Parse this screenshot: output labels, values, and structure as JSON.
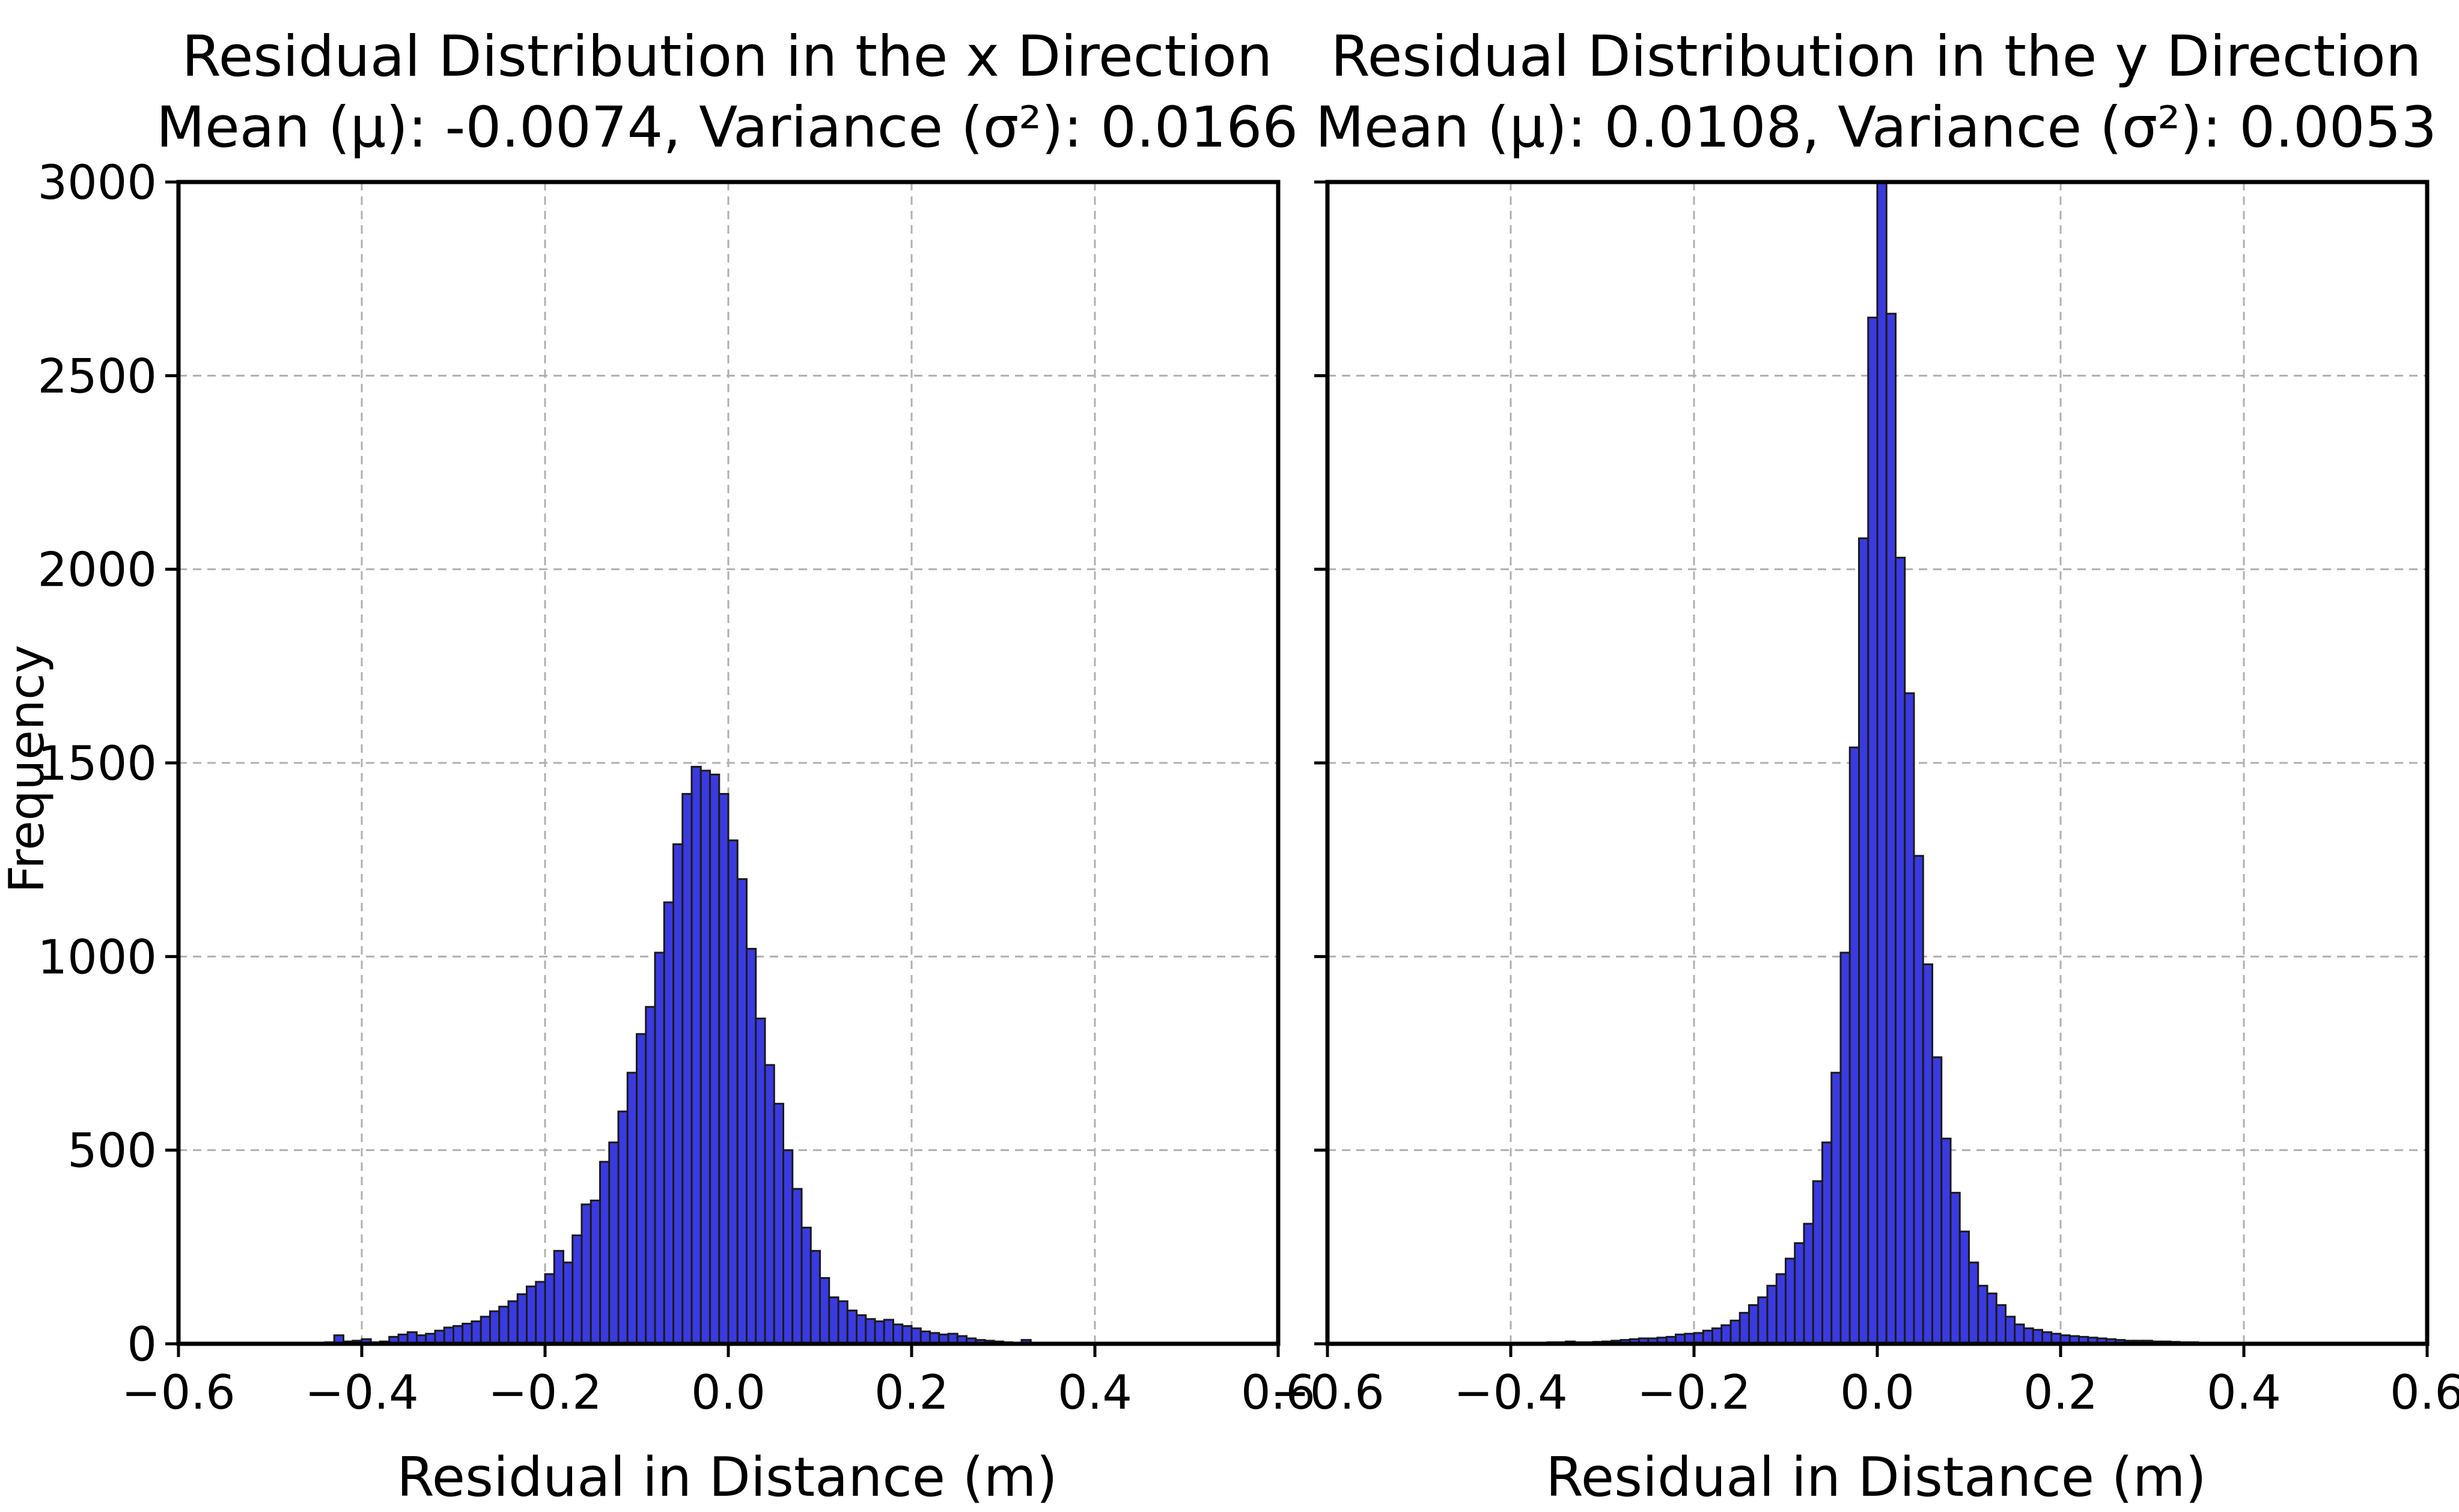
{
  "chart_data": [
    {
      "type": "bar",
      "id": "x",
      "title_line1": "Residual Distribution in the x Direction",
      "title_line2": "Mean (μ): -0.0074, Variance (σ²): 0.0166",
      "xlabel": "Residual in Distance (m)",
      "ylabel": "Frequency",
      "xlim": [
        -0.6,
        0.6
      ],
      "ylim": [
        0,
        3000
      ],
      "xticks": [
        -0.6,
        -0.4,
        -0.2,
        0.0,
        0.2,
        0.4,
        0.6
      ],
      "xtick_labels": [
        "−0.6",
        "−0.4",
        "−0.2",
        "0.0",
        "0.2",
        "0.4",
        "0.6"
      ],
      "yticks": [
        0,
        500,
        1000,
        1500,
        2000,
        2500,
        3000
      ],
      "ytick_labels": [
        "0",
        "500",
        "1000",
        "1500",
        "2000",
        "2500",
        "3000"
      ],
      "grid": true,
      "bar_color": "#3a3ae0",
      "bin_width": 0.01,
      "bin_starts": [
        -0.6,
        -0.59,
        -0.58,
        -0.57,
        -0.56,
        -0.55,
        -0.54,
        -0.53,
        -0.52,
        -0.51,
        -0.5,
        -0.49,
        -0.48,
        -0.47,
        -0.46,
        -0.45,
        -0.44,
        -0.43,
        -0.42,
        -0.41,
        -0.4,
        -0.39,
        -0.38,
        -0.37,
        -0.36,
        -0.35,
        -0.34,
        -0.33,
        -0.32,
        -0.31,
        -0.3,
        -0.29,
        -0.28,
        -0.27,
        -0.26,
        -0.25,
        -0.24,
        -0.23,
        -0.22,
        -0.21,
        -0.2,
        -0.19,
        -0.18,
        -0.17,
        -0.16,
        -0.15,
        -0.14,
        -0.13,
        -0.12,
        -0.11,
        -0.1,
        -0.09,
        -0.08,
        -0.07,
        -0.06,
        -0.05,
        -0.04,
        -0.03,
        -0.02,
        -0.01,
        0.0,
        0.01,
        0.02,
        0.03,
        0.04,
        0.05,
        0.06,
        0.07,
        0.08,
        0.09,
        0.1,
        0.11,
        0.12,
        0.13,
        0.14,
        0.15,
        0.16,
        0.17,
        0.18,
        0.19,
        0.2,
        0.21,
        0.22,
        0.23,
        0.24,
        0.25,
        0.26,
        0.27,
        0.28,
        0.29,
        0.3,
        0.31,
        0.32,
        0.33,
        0.34,
        0.35,
        0.36,
        0.37,
        0.38,
        0.39,
        0.4,
        0.41,
        0.42,
        0.43,
        0.44,
        0.45,
        0.46,
        0.47,
        0.48,
        0.49,
        0.5,
        0.51,
        0.52,
        0.53,
        0.54,
        0.55,
        0.56,
        0.57,
        0.58,
        0.59
      ],
      "values": [
        0,
        0,
        1,
        2,
        2,
        3,
        2,
        1,
        2,
        3,
        2,
        2,
        3,
        2,
        3,
        2,
        4,
        22,
        6,
        8,
        12,
        4,
        6,
        18,
        24,
        30,
        22,
        26,
        34,
        42,
        46,
        52,
        58,
        70,
        84,
        96,
        110,
        128,
        148,
        160,
        180,
        240,
        210,
        280,
        360,
        370,
        470,
        520,
        600,
        700,
        800,
        870,
        1010,
        1140,
        1290,
        1420,
        1490,
        1480,
        1470,
        1420,
        1300,
        1200,
        1020,
        840,
        720,
        620,
        500,
        400,
        300,
        240,
        170,
        120,
        110,
        86,
        74,
        64,
        58,
        62,
        50,
        46,
        40,
        32,
        28,
        24,
        26,
        20,
        14,
        10,
        8,
        6,
        4,
        2,
        10,
        3,
        2,
        2,
        1,
        2,
        1,
        1,
        2,
        1,
        2,
        1,
        1,
        1,
        0,
        1,
        1,
        0,
        1,
        0,
        1,
        0,
        0,
        1,
        0,
        0,
        0,
        0
      ]
    },
    {
      "type": "bar",
      "id": "y",
      "title_line1": "Residual Distribution in the y Direction",
      "title_line2": "Mean (μ): 0.0108, Variance (σ²): 0.0053",
      "xlabel": "Residual in Distance (m)",
      "xlim": [
        -0.6,
        0.6
      ],
      "ylim": [
        0,
        3000
      ],
      "xticks": [
        -0.6,
        -0.4,
        -0.2,
        0.0,
        0.2,
        0.4,
        0.6
      ],
      "xtick_labels": [
        "−0.6",
        "−0.4",
        "−0.2",
        "0.0",
        "0.2",
        "0.4",
        "0.6"
      ],
      "yticks": [
        0,
        500,
        1000,
        1500,
        2000,
        2500,
        3000
      ],
      "grid": true,
      "bar_color": "#3a3ae0",
      "bin_width": 0.01,
      "bin_starts": [
        -0.6,
        -0.59,
        -0.58,
        -0.57,
        -0.56,
        -0.55,
        -0.54,
        -0.53,
        -0.52,
        -0.51,
        -0.5,
        -0.49,
        -0.48,
        -0.47,
        -0.46,
        -0.45,
        -0.44,
        -0.43,
        -0.42,
        -0.41,
        -0.4,
        -0.39,
        -0.38,
        -0.37,
        -0.36,
        -0.35,
        -0.34,
        -0.33,
        -0.32,
        -0.31,
        -0.3,
        -0.29,
        -0.28,
        -0.27,
        -0.26,
        -0.25,
        -0.24,
        -0.23,
        -0.22,
        -0.21,
        -0.2,
        -0.19,
        -0.18,
        -0.17,
        -0.16,
        -0.15,
        -0.14,
        -0.13,
        -0.12,
        -0.11,
        -0.1,
        -0.09,
        -0.08,
        -0.07,
        -0.06,
        -0.05,
        -0.04,
        -0.03,
        -0.02,
        -0.01,
        0.0,
        0.01,
        0.02,
        0.03,
        0.04,
        0.05,
        0.06,
        0.07,
        0.08,
        0.09,
        0.1,
        0.11,
        0.12,
        0.13,
        0.14,
        0.15,
        0.16,
        0.17,
        0.18,
        0.19,
        0.2,
        0.21,
        0.22,
        0.23,
        0.24,
        0.25,
        0.26,
        0.27,
        0.28,
        0.29,
        0.3,
        0.31,
        0.32,
        0.33,
        0.34,
        0.35,
        0.36,
        0.37,
        0.38,
        0.39,
        0.4,
        0.41,
        0.42,
        0.43,
        0.44,
        0.45,
        0.46,
        0.47,
        0.48,
        0.49,
        0.5,
        0.51,
        0.52,
        0.53,
        0.54,
        0.55,
        0.56,
        0.57,
        0.58,
        0.59
      ],
      "values": [
        0,
        0,
        0,
        0,
        0,
        0,
        0,
        0,
        0,
        0,
        0,
        0,
        0,
        1,
        1,
        1,
        0,
        1,
        0,
        0,
        0,
        1,
        2,
        2,
        4,
        4,
        6,
        4,
        4,
        5,
        6,
        8,
        10,
        12,
        14,
        14,
        16,
        18,
        24,
        26,
        28,
        34,
        40,
        48,
        60,
        80,
        100,
        120,
        150,
        180,
        220,
        260,
        310,
        420,
        520,
        700,
        1010,
        1540,
        2080,
        2650,
        3000,
        2660,
        2030,
        1680,
        1260,
        980,
        740,
        530,
        390,
        290,
        210,
        150,
        130,
        100,
        70,
        50,
        40,
        36,
        30,
        26,
        22,
        20,
        18,
        16,
        14,
        12,
        10,
        8,
        8,
        8,
        6,
        6,
        5,
        4,
        4,
        3,
        3,
        2,
        2,
        2,
        2,
        2,
        2,
        2,
        1,
        1,
        1,
        1,
        1,
        1,
        1,
        0,
        0,
        0,
        0,
        0,
        0,
        0,
        0,
        0
      ]
    }
  ]
}
